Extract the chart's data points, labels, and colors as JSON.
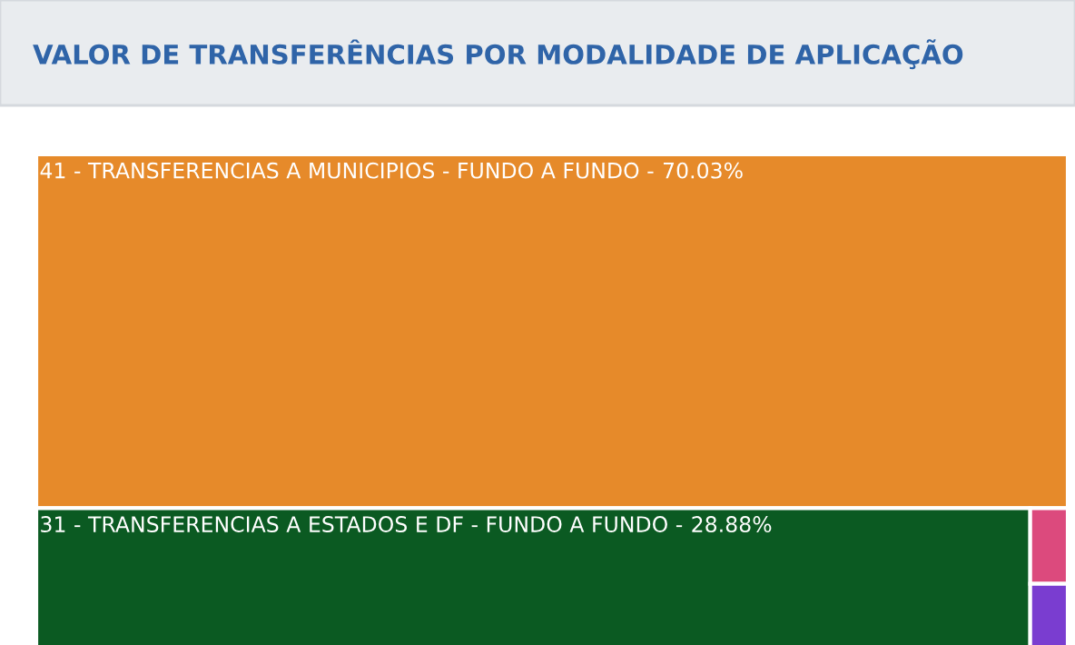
{
  "chart_data": {
    "type": "other",
    "title": "VALOR DE TRANSFERÊNCIAS POR MODALIDADE DE APLICAÇÃO",
    "categories": [
      "41 - TRANSFERENCIAS A MUNICIPIOS - FUNDO A FUNDO -",
      "31 - TRANSFERENCIAS A ESTADOS E DF - FUNDO A FUNDO -",
      null,
      null
    ],
    "value_labels": [
      "70.03%",
      "28.88%",
      null,
      null
    ],
    "values": [
      70.03,
      28.88,
      null,
      null
    ],
    "colors": [
      "#e68a2a",
      "#0b5a22",
      "#dc4a7d",
      "#7a3dd0"
    ]
  }
}
